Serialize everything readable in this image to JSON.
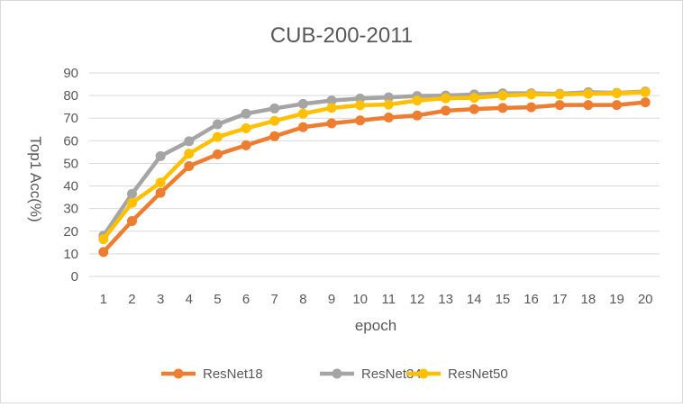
{
  "chart_data": {
    "type": "line",
    "title": "CUB-200-2011",
    "xlabel": "epoch",
    "ylabel": "Top1 Acc(%)",
    "ylim": [
      0,
      90
    ],
    "yticks": [
      0,
      10,
      20,
      30,
      40,
      50,
      60,
      70,
      80,
      90
    ],
    "grid": true,
    "legend_position": "bottom",
    "categories": [
      "1",
      "2",
      "3",
      "4",
      "5",
      "6",
      "7",
      "8",
      "9",
      "10",
      "11",
      "12",
      "13",
      "14",
      "15",
      "16",
      "17",
      "18",
      "19",
      "20"
    ],
    "series": [
      {
        "name": "ResNet18",
        "color": "#ED7D31",
        "values": [
          10.8,
          24.5,
          37.0,
          48.8,
          54.0,
          58.0,
          62.0,
          66.0,
          67.7,
          69.0,
          70.3,
          71.2,
          73.3,
          74.0,
          74.5,
          74.8,
          75.8,
          75.8,
          75.8,
          77.0
        ]
      },
      {
        "name": "ResNet34",
        "color": "#A5A5A5",
        "values": [
          18.0,
          36.5,
          53.2,
          59.8,
          67.3,
          72.0,
          74.3,
          76.3,
          77.8,
          78.7,
          79.2,
          79.8,
          80.0,
          80.5,
          81.0,
          81.0,
          80.8,
          81.5,
          81.2,
          81.8
        ]
      },
      {
        "name": "ResNet50",
        "color": "#FFC000",
        "values": [
          16.5,
          32.5,
          41.5,
          54.3,
          61.7,
          65.5,
          68.8,
          72.0,
          74.5,
          75.7,
          76.0,
          77.8,
          78.8,
          79.0,
          80.0,
          80.5,
          80.5,
          80.8,
          81.0,
          81.5
        ]
      }
    ]
  }
}
